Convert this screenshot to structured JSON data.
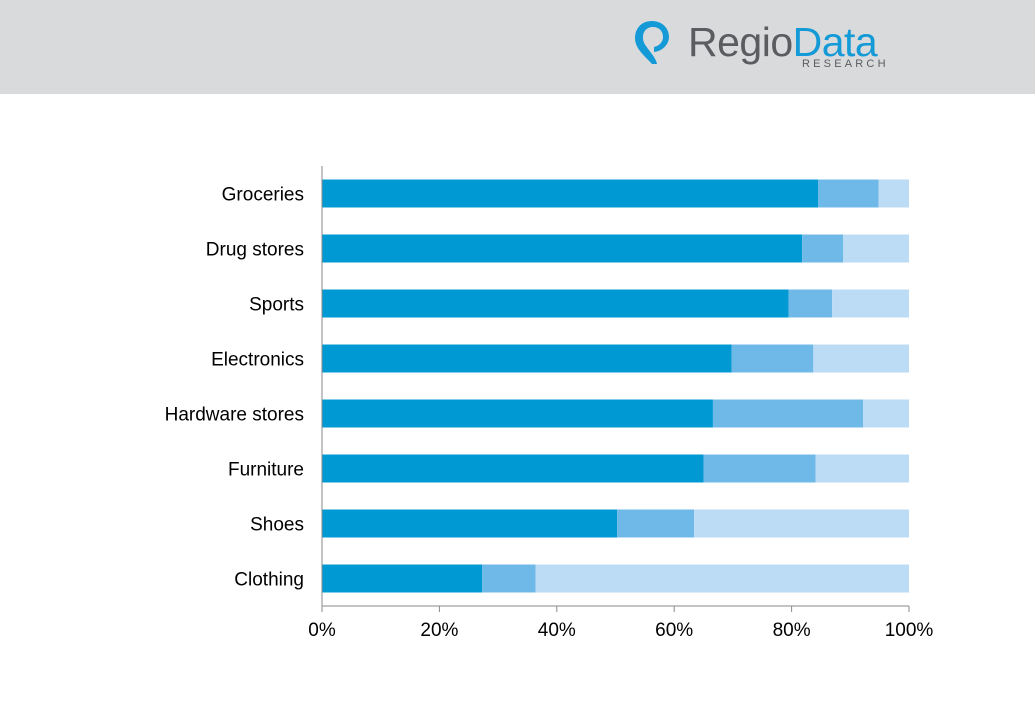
{
  "header": {
    "logo": {
      "word1": "Regio",
      "word2": "Data",
      "subtitle": "RESEARCH",
      "icon": "map-pin-icon"
    }
  },
  "colors": {
    "header_bg": "#d9dadc",
    "series": [
      "#0099d3",
      "#6fb9e8",
      "#bcdbf4"
    ],
    "axis": "#8a8a8a"
  },
  "chart_data": {
    "type": "bar",
    "orientation": "horizontal",
    "stacked": "percent",
    "categories": [
      "Groceries",
      "Drug stores",
      "Sports",
      "Electronics",
      "Hardware stores",
      "Furniture",
      "Shoes",
      "Clothing"
    ],
    "series": [
      {
        "values": [
          84.5,
          81.8,
          79.5,
          69.8,
          66.6,
          65.0,
          50.3,
          27.3
        ]
      },
      {
        "values": [
          10.3,
          7.0,
          7.4,
          13.9,
          25.6,
          19.1,
          13.1,
          9.1
        ]
      },
      {
        "values": [
          5.2,
          11.2,
          13.1,
          16.3,
          7.8,
          15.9,
          36.6,
          63.6
        ]
      }
    ],
    "xlim": [
      0,
      100
    ],
    "x_ticks": [
      "0%",
      "20%",
      "40%",
      "60%",
      "80%",
      "100%"
    ],
    "grid": false,
    "legend": "none"
  }
}
